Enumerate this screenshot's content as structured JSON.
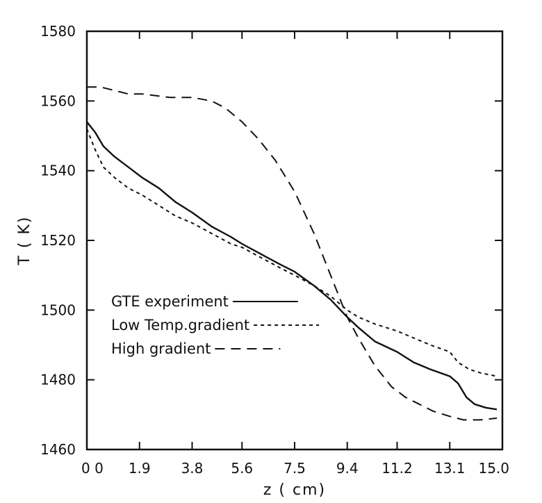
{
  "chart_data": {
    "type": "line",
    "xlabel": "z ( cm)",
    "ylabel": "T ( K)",
    "xlim": [
      0,
      15
    ],
    "ylim": [
      1460,
      1580
    ],
    "x_ticks": [
      {
        "value": 0,
        "label": "0 0"
      },
      {
        "value": 1.9,
        "label": "1.9"
      },
      {
        "value": 3.8,
        "label": "3.8"
      },
      {
        "value": 5.6,
        "label": "5.6"
      },
      {
        "value": 7.5,
        "label": "7.5"
      },
      {
        "value": 9.4,
        "label": "9.4"
      },
      {
        "value": 11.2,
        "label": "11.2"
      },
      {
        "value": 13.1,
        "label": "13.1"
      },
      {
        "value": 15.0,
        "label": "15.0"
      }
    ],
    "y_ticks": [
      {
        "value": 1460,
        "label": "1460"
      },
      {
        "value": 1480,
        "label": "1480"
      },
      {
        "value": 1500,
        "label": "1500"
      },
      {
        "value": 1520,
        "label": "1520"
      },
      {
        "value": 1540,
        "label": "1540"
      },
      {
        "value": 1560,
        "label": "1560"
      },
      {
        "value": 1580,
        "label": "1580"
      }
    ],
    "legend_position": "lower-left",
    "series": [
      {
        "name": "GTE experiment",
        "style": "solid",
        "x": [
          0.0,
          0.3,
          0.6,
          1.0,
          1.5,
          2.0,
          2.6,
          3.2,
          3.8,
          4.5,
          5.2,
          5.6,
          6.3,
          7.0,
          7.5,
          8.2,
          8.8,
          9.4,
          9.8,
          10.4,
          11.2,
          11.8,
          12.4,
          13.1,
          13.4,
          13.7,
          14.0,
          14.4,
          14.8
        ],
        "y": [
          1554,
          1551,
          1547,
          1544,
          1541,
          1538,
          1535,
          1531,
          1528,
          1524,
          1521,
          1519,
          1516,
          1513,
          1511,
          1507,
          1503,
          1498,
          1495,
          1491,
          1488,
          1485,
          1483,
          1481,
          1479,
          1475,
          1473,
          1472,
          1471.5
        ]
      },
      {
        "name": "Low Temp.gradient",
        "style": "dotted",
        "x": [
          0.0,
          0.3,
          0.6,
          1.0,
          1.5,
          2.0,
          2.6,
          3.2,
          3.8,
          4.5,
          5.2,
          5.6,
          6.3,
          7.0,
          7.5,
          8.2,
          8.8,
          9.4,
          9.8,
          10.4,
          11.2,
          11.8,
          12.4,
          13.1,
          13.4,
          13.8,
          14.2,
          14.8
        ],
        "y": [
          1552,
          1546,
          1541,
          1538,
          1535,
          1533,
          1530,
          1527,
          1525,
          1522,
          1519,
          1518,
          1515,
          1512,
          1510,
          1507,
          1504,
          1500,
          1498,
          1496,
          1494,
          1492,
          1490,
          1488,
          1485,
          1483,
          1482,
          1481
        ]
      },
      {
        "name": "High gradient",
        "style": "dashed",
        "x": [
          0.0,
          0.5,
          1.0,
          1.5,
          2.0,
          3.0,
          3.8,
          4.5,
          5.0,
          5.6,
          6.2,
          6.8,
          7.5,
          8.2,
          8.8,
          9.4,
          9.8,
          10.4,
          11.0,
          11.5,
          12.0,
          12.5,
          13.1,
          13.6,
          14.2,
          14.8
        ],
        "y": [
          1564,
          1564,
          1563,
          1562,
          1562,
          1561,
          1561,
          1560,
          1558,
          1554,
          1549,
          1543,
          1534,
          1522,
          1510,
          1498,
          1492,
          1484,
          1478,
          1475,
          1473,
          1471,
          1469.5,
          1468.5,
          1468.5,
          1469
        ]
      }
    ]
  }
}
